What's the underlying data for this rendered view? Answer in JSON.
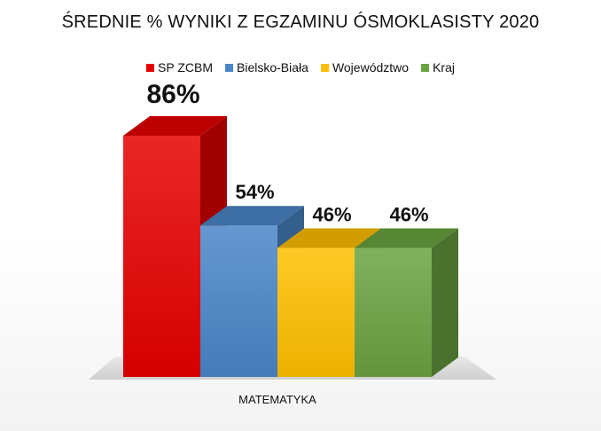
{
  "chart_data": {
    "type": "bar",
    "title": "ŚREDNIE % WYNIKI Z EGZAMINU ÓSMOKLASISTY 2020",
    "categories": [
      "MATEMATYKA"
    ],
    "series": [
      {
        "name": "SP ZCBM",
        "values": [
          86
        ],
        "label": "86%",
        "color": "#e60000"
      },
      {
        "name": "Bielsko-Biała",
        "values": [
          54
        ],
        "label": "54%",
        "color": "#4a86c8"
      },
      {
        "name": "Województwo",
        "values": [
          46
        ],
        "label": "46%",
        "color": "#ffc000"
      },
      {
        "name": "Kraj",
        "values": [
          46
        ],
        "label": "46%",
        "color": "#6aa341"
      }
    ],
    "ylim": [
      0,
      100
    ],
    "legend": "top",
    "style": "3d-column"
  }
}
